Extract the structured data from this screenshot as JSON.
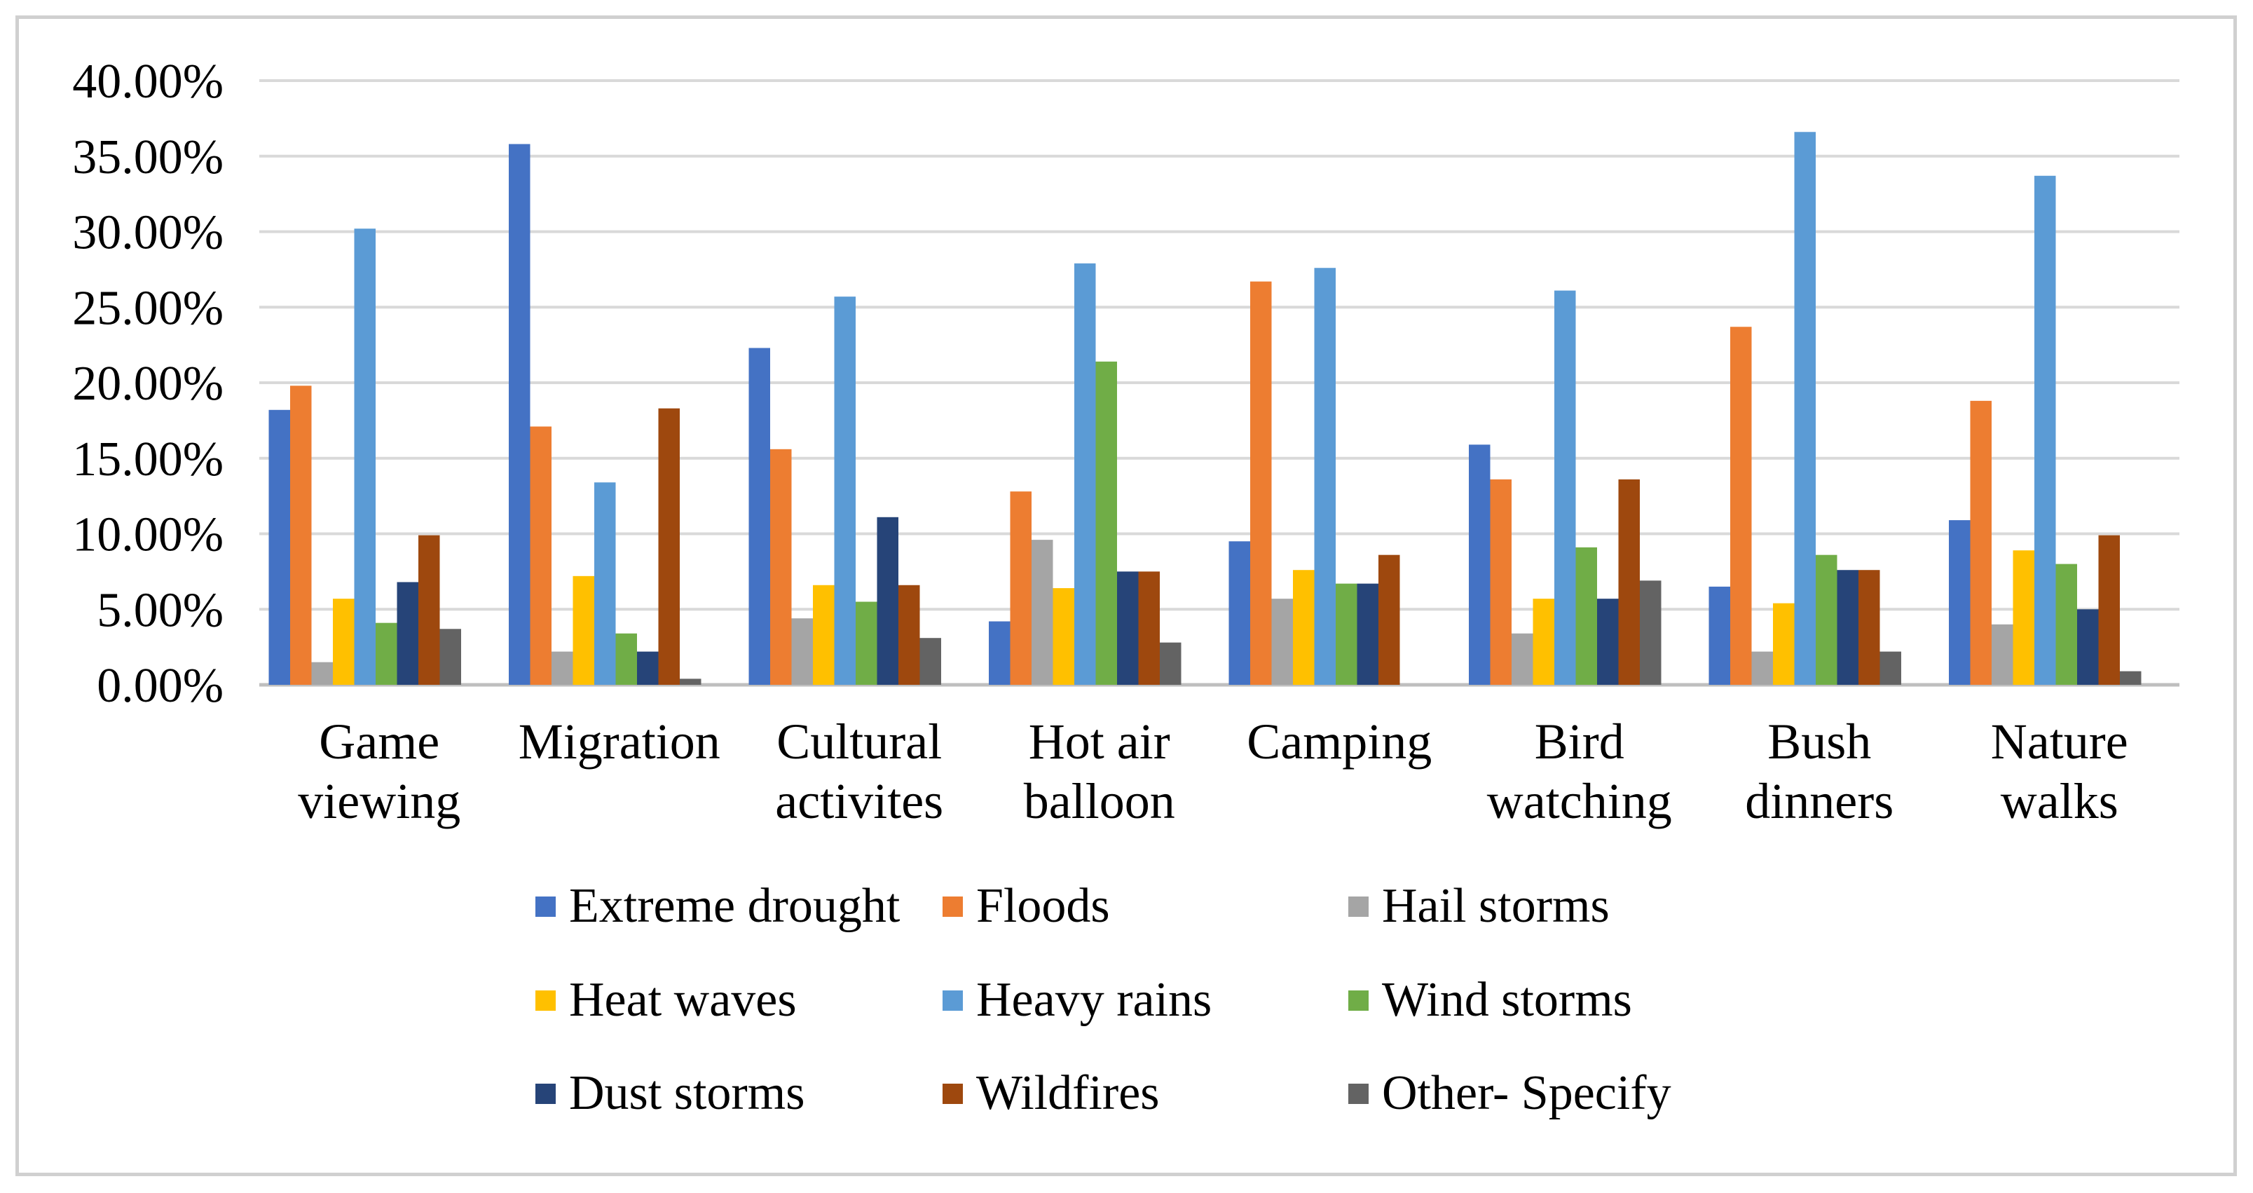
{
  "chart_data": {
    "type": "bar",
    "title": "",
    "xlabel": "",
    "ylabel": "",
    "ylim": [
      0,
      40
    ],
    "yticks": [
      "0.00%",
      "5.00%",
      "10.00%",
      "15.00%",
      "20.00%",
      "25.00%",
      "30.00%",
      "35.00%",
      "40.00%"
    ],
    "grid": true,
    "legend_position": "bottom",
    "categories": [
      [
        "Game",
        "viewing"
      ],
      [
        "Migration"
      ],
      [
        "Cultural",
        "activites"
      ],
      [
        "Hot air",
        "balloon"
      ],
      [
        "Camping"
      ],
      [
        "Bird",
        "watching"
      ],
      [
        "Bush",
        "dinners"
      ],
      [
        "Nature",
        "walks"
      ]
    ],
    "series": [
      {
        "name": "Extreme drought",
        "color": "#4472c4",
        "values": [
          18.2,
          35.8,
          22.3,
          4.2,
          9.5,
          15.9,
          6.5,
          10.9
        ]
      },
      {
        "name": "Floods",
        "color": "#ed7d31",
        "values": [
          19.8,
          17.1,
          15.6,
          12.8,
          26.7,
          13.6,
          23.7,
          18.8
        ]
      },
      {
        "name": "Hail storms",
        "color": "#a5a5a5",
        "values": [
          1.5,
          2.2,
          4.4,
          9.6,
          5.7,
          3.4,
          2.2,
          4.0
        ]
      },
      {
        "name": "Heat waves",
        "color": "#ffc000",
        "values": [
          5.7,
          7.2,
          6.6,
          6.4,
          7.6,
          5.7,
          5.4,
          8.9
        ]
      },
      {
        "name": "Heavy rains",
        "color": "#5b9bd5",
        "values": [
          30.2,
          13.4,
          25.7,
          27.9,
          27.6,
          26.1,
          36.6,
          33.7
        ]
      },
      {
        "name": "Wind storms",
        "color": "#70ad47",
        "values": [
          4.1,
          3.4,
          5.5,
          21.4,
          6.7,
          9.1,
          8.6,
          8.0
        ]
      },
      {
        "name": "Dust storms",
        "color": "#264478",
        "values": [
          6.8,
          2.2,
          11.1,
          7.5,
          6.7,
          5.7,
          7.6,
          5.0
        ]
      },
      {
        "name": "Wildfires",
        "color": "#9e480e",
        "values": [
          9.9,
          18.3,
          6.6,
          7.5,
          8.6,
          13.6,
          7.6,
          9.9
        ]
      },
      {
        "name": "Other- Specify",
        "color": "#636363",
        "values": [
          3.7,
          0.4,
          3.1,
          2.8,
          0.0,
          6.9,
          2.2,
          0.9
        ]
      }
    ]
  }
}
